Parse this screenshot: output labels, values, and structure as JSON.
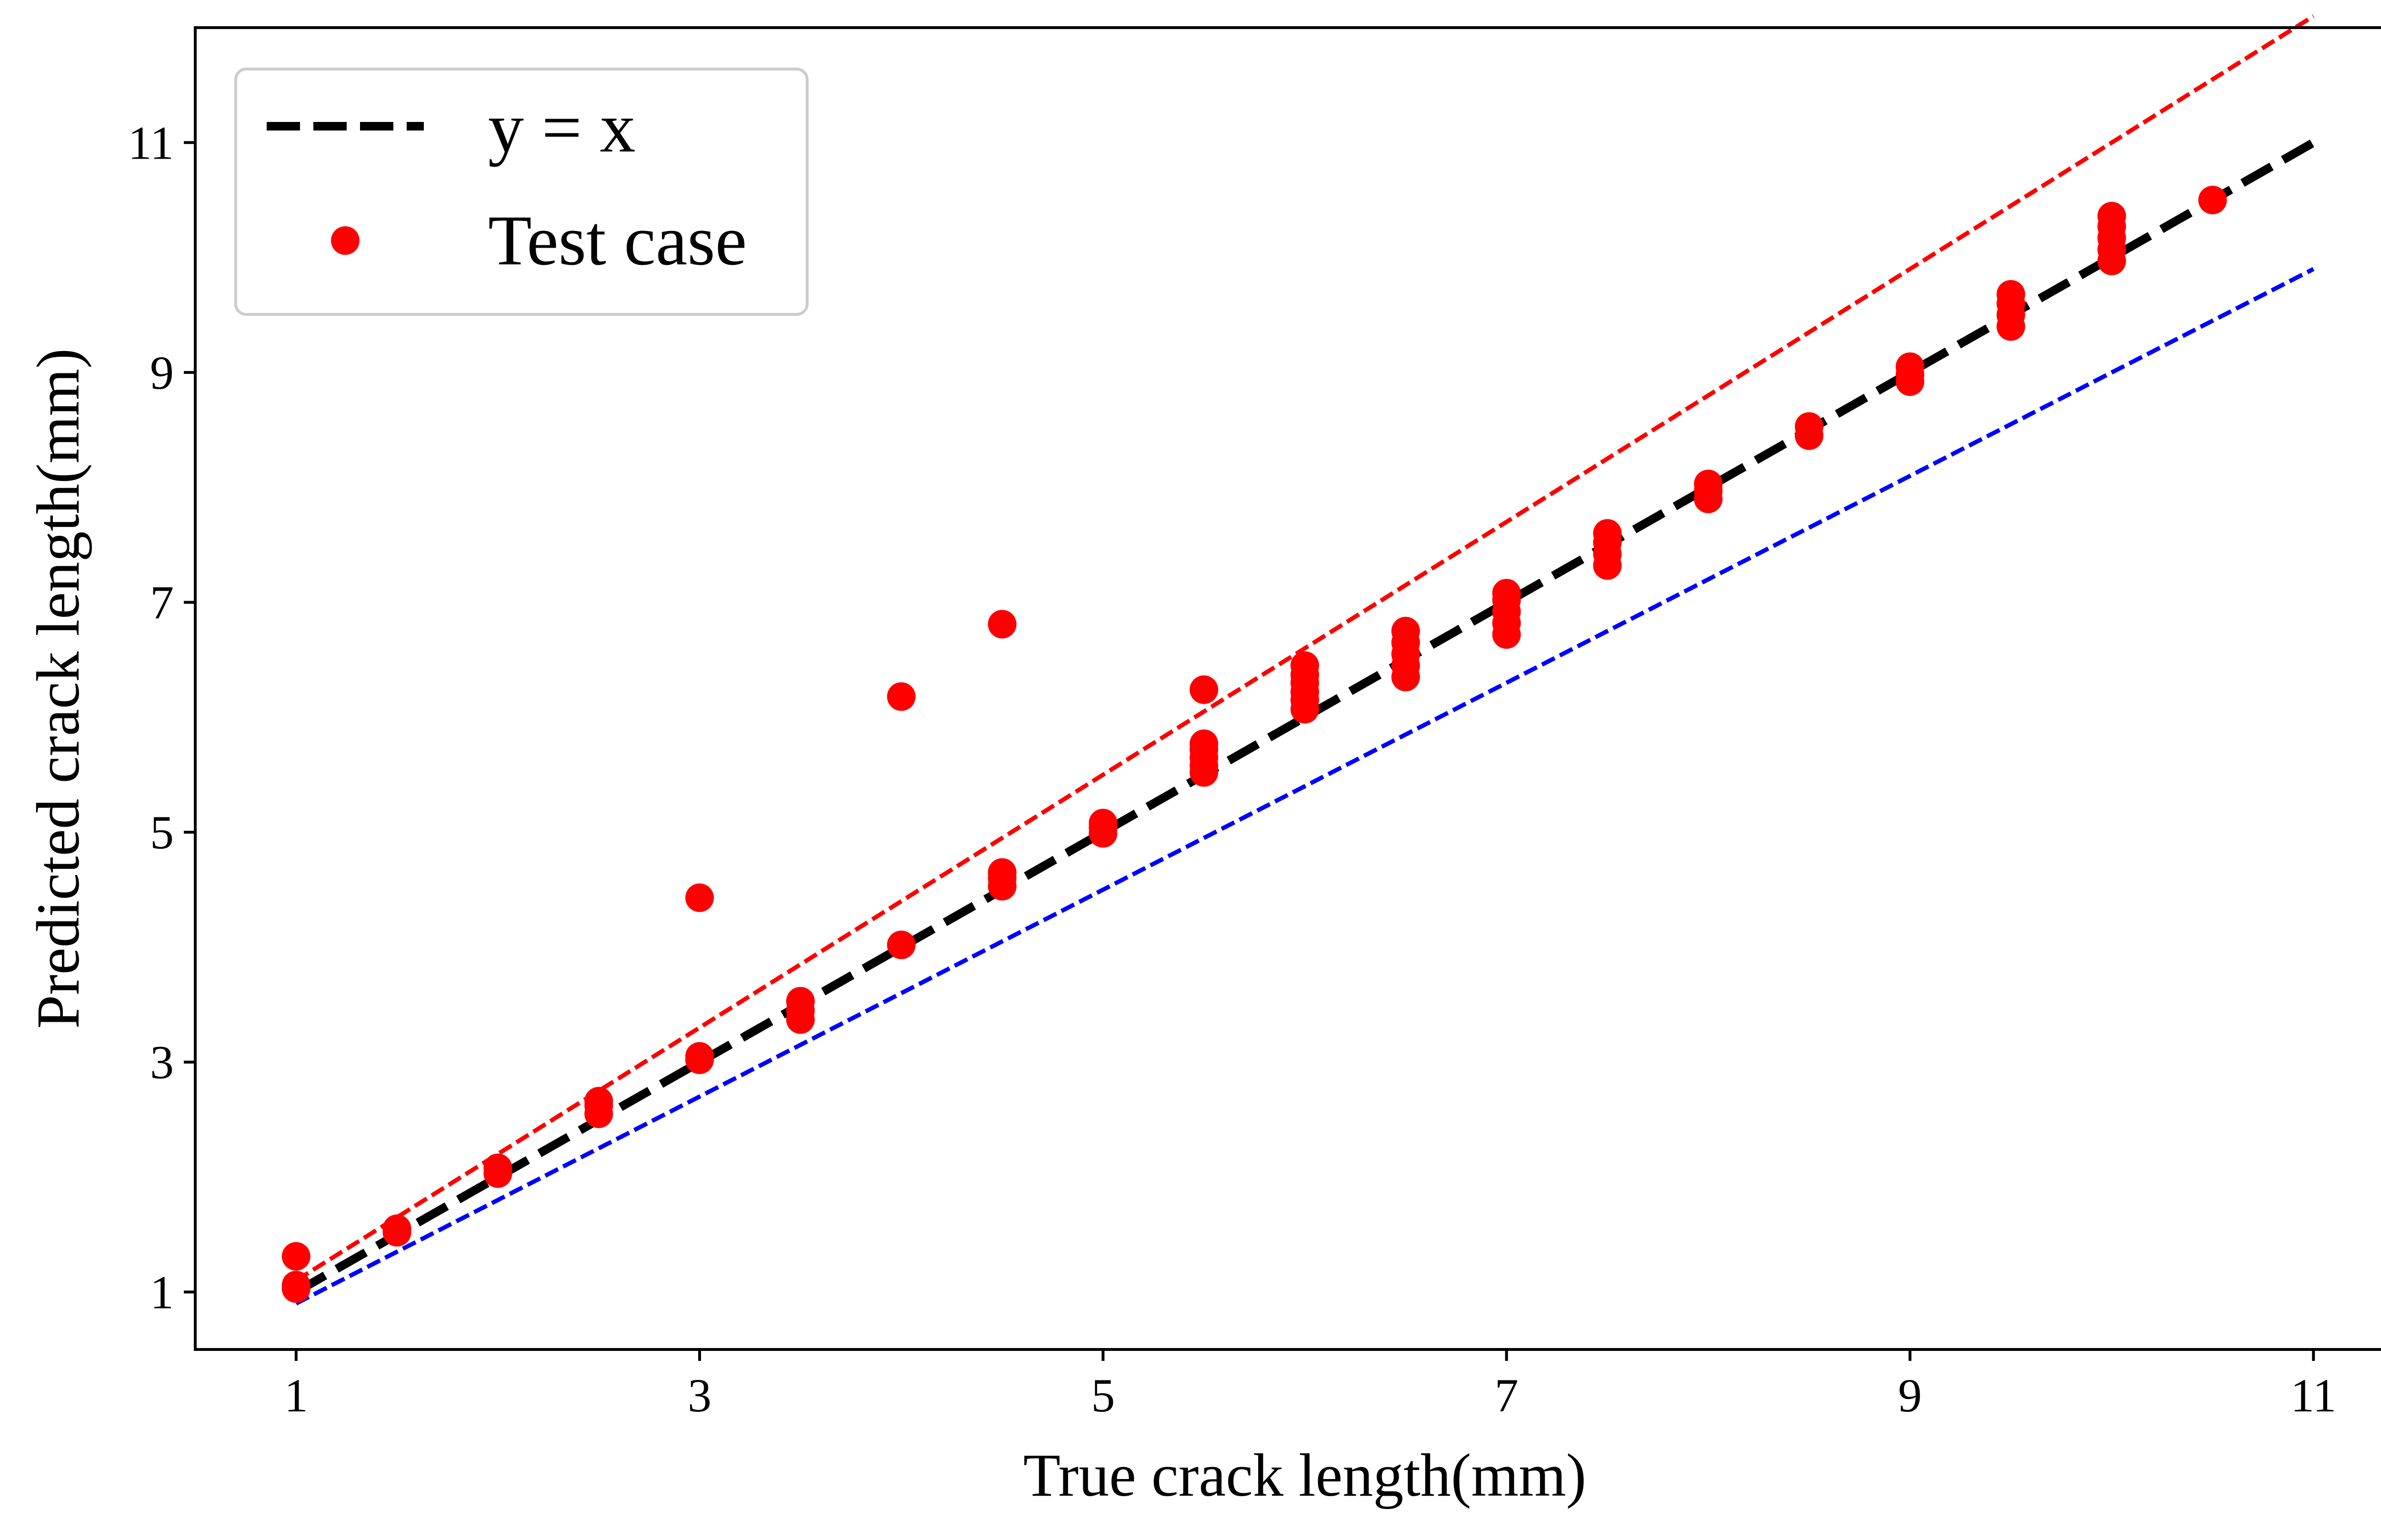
{
  "chart_data": {
    "type": "scatter",
    "title": "",
    "xlabel": "True crack length(mm)",
    "ylabel": "Predicted crack length(mm)",
    "xlim": [
      0.5,
      11.5
    ],
    "ylim": [
      0.5,
      12.0
    ],
    "xticks": [
      1,
      3,
      5,
      7,
      9,
      11
    ],
    "yticks": [
      1,
      3,
      5,
      7,
      9,
      11
    ],
    "grid": false,
    "legend": {
      "placement": "top-left",
      "entries": [
        {
          "label": "y = x",
          "style": "dashed-line",
          "color": "#000000"
        },
        {
          "label": "Test case",
          "style": "marker",
          "color": "#ff0000"
        }
      ]
    },
    "reference_lines": [
      {
        "label": "y = x",
        "x": [
          1,
          11
        ],
        "y": [
          1,
          11
        ],
        "color": "#000000",
        "style": "dashed",
        "in_legend": true
      },
      {
        "x": [
          1,
          11
        ],
        "y": [
          1.1,
          12.1
        ],
        "color": "#ff0000",
        "style": "dashed",
        "in_legend": false
      },
      {
        "x": [
          1,
          11
        ],
        "y": [
          0.9,
          9.9
        ],
        "color": "#0000ff",
        "style": "dashed",
        "in_legend": false
      }
    ],
    "series": [
      {
        "name": "Test case",
        "color": "#ff0000",
        "points": [
          [
            1.0,
            1.03
          ],
          [
            1.0,
            1.06
          ],
          [
            1.0,
            1.31
          ],
          [
            1.5,
            1.52
          ],
          [
            1.5,
            1.55
          ],
          [
            2.0,
            2.03
          ],
          [
            2.0,
            2.08
          ],
          [
            2.5,
            2.55
          ],
          [
            2.5,
            2.62
          ],
          [
            2.5,
            2.66
          ],
          [
            3.0,
            3.02
          ],
          [
            3.0,
            3.05
          ],
          [
            3.0,
            4.43
          ],
          [
            3.5,
            3.37
          ],
          [
            3.5,
            3.45
          ],
          [
            3.5,
            3.53
          ],
          [
            4.0,
            4.02
          ],
          [
            4.0,
            6.18
          ],
          [
            4.5,
            4.53
          ],
          [
            4.5,
            4.6
          ],
          [
            4.5,
            4.65
          ],
          [
            4.5,
            6.81
          ],
          [
            5.0,
            4.99
          ],
          [
            5.0,
            5.04
          ],
          [
            5.0,
            5.08
          ],
          [
            5.5,
            5.52
          ],
          [
            5.5,
            5.58
          ],
          [
            5.5,
            5.65
          ],
          [
            5.5,
            5.72
          ],
          [
            5.5,
            5.77
          ],
          [
            5.5,
            6.24
          ],
          [
            6.0,
            6.07
          ],
          [
            6.0,
            6.15
          ],
          [
            6.0,
            6.22
          ],
          [
            6.0,
            6.3
          ],
          [
            6.0,
            6.37
          ],
          [
            6.0,
            6.45
          ],
          [
            6.5,
            6.35
          ],
          [
            6.5,
            6.45
          ],
          [
            6.5,
            6.55
          ],
          [
            6.5,
            6.65
          ],
          [
            6.5,
            6.75
          ],
          [
            7.0,
            6.72
          ],
          [
            7.0,
            6.82
          ],
          [
            7.0,
            6.92
          ],
          [
            7.0,
            7.02
          ],
          [
            7.0,
            7.08
          ],
          [
            7.5,
            7.32
          ],
          [
            7.5,
            7.42
          ],
          [
            7.5,
            7.52
          ],
          [
            7.5,
            7.6
          ],
          [
            8.0,
            7.9
          ],
          [
            8.0,
            7.97
          ],
          [
            8.0,
            8.03
          ],
          [
            8.5,
            8.45
          ],
          [
            8.5,
            8.53
          ],
          [
            9.0,
            8.92
          ],
          [
            9.0,
            8.98
          ],
          [
            9.0,
            9.05
          ],
          [
            9.5,
            9.4
          ],
          [
            9.5,
            9.5
          ],
          [
            9.5,
            9.6
          ],
          [
            9.5,
            9.68
          ],
          [
            10.0,
            9.97
          ],
          [
            10.0,
            10.07
          ],
          [
            10.0,
            10.17
          ],
          [
            10.0,
            10.27
          ],
          [
            10.0,
            10.36
          ],
          [
            10.5,
            10.5
          ]
        ]
      }
    ]
  }
}
